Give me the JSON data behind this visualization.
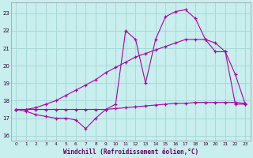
{
  "xlabel": "Windchill (Refroidissement éolien,°C)",
  "bg_color": "#c8eeee",
  "grid_color": "#a8d8d8",
  "line_color": "#aa00aa",
  "xlim": [
    -0.5,
    23.5
  ],
  "ylim": [
    15.7,
    23.6
  ],
  "yticks": [
    16,
    17,
    18,
    19,
    20,
    21,
    22,
    23
  ],
  "xticks": [
    0,
    1,
    2,
    3,
    4,
    5,
    6,
    7,
    8,
    9,
    10,
    11,
    12,
    13,
    14,
    15,
    16,
    17,
    18,
    19,
    20,
    21,
    22,
    23
  ],
  "line1_x": [
    0,
    1,
    2,
    3,
    4,
    5,
    6,
    7,
    8,
    9,
    10,
    11,
    12,
    13,
    14,
    15,
    16,
    17,
    18,
    19,
    20,
    21,
    22,
    23
  ],
  "line1_y": [
    17.5,
    17.5,
    17.5,
    17.5,
    17.5,
    17.5,
    17.5,
    17.5,
    17.5,
    17.5,
    17.55,
    17.6,
    17.65,
    17.7,
    17.75,
    17.8,
    17.85,
    17.85,
    17.9,
    17.9,
    17.9,
    17.9,
    17.9,
    17.85
  ],
  "line2_x": [
    0,
    1,
    2,
    3,
    4,
    5,
    6,
    7,
    8,
    9,
    10,
    11,
    12,
    13,
    14,
    15,
    16,
    17,
    18,
    19,
    20,
    21,
    22,
    23
  ],
  "line2_y": [
    17.5,
    17.5,
    17.6,
    17.8,
    18.0,
    18.3,
    18.6,
    18.9,
    19.2,
    19.6,
    19.9,
    20.2,
    20.5,
    20.7,
    20.9,
    21.1,
    21.3,
    21.5,
    21.5,
    21.5,
    21.3,
    20.8,
    19.5,
    17.8
  ],
  "line3_x": [
    0,
    1,
    2,
    3,
    4,
    5,
    6,
    7,
    8,
    9,
    10,
    11,
    12,
    13,
    14,
    15,
    16,
    17,
    18,
    19,
    20,
    21,
    22,
    23
  ],
  "line3_y": [
    17.5,
    17.4,
    17.2,
    17.1,
    17.0,
    17.0,
    16.9,
    16.4,
    17.0,
    17.5,
    17.8,
    22.0,
    21.5,
    19.0,
    21.5,
    22.8,
    23.1,
    23.2,
    22.7,
    21.5,
    20.8,
    20.8,
    17.8,
    17.8
  ]
}
